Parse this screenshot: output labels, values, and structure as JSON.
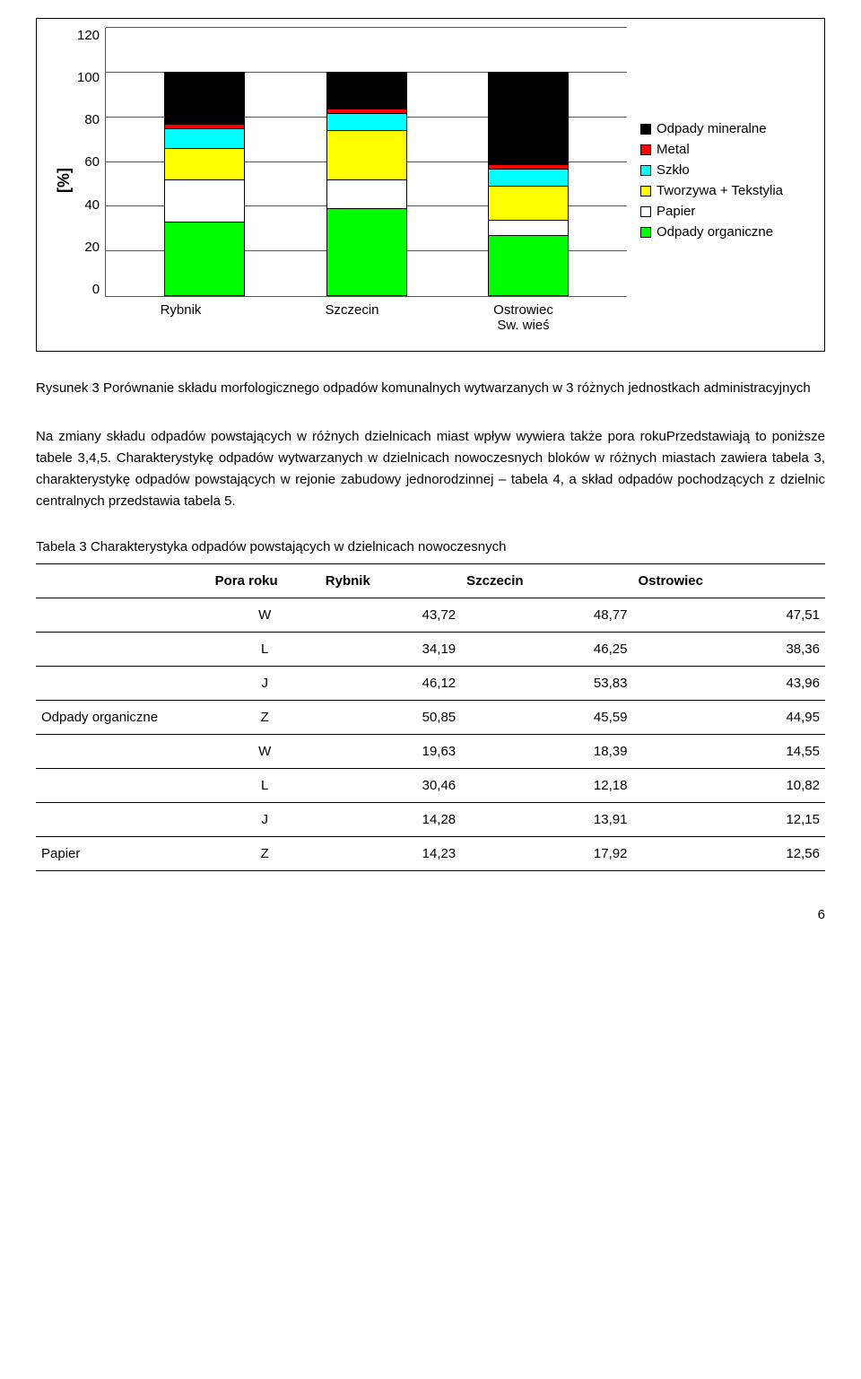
{
  "chart": {
    "type": "stacked-bar",
    "ylabel": "[%]",
    "ymax": 120,
    "ytick_step": 20,
    "yticks": [
      "120",
      "100",
      "80",
      "60",
      "40",
      "20",
      "0"
    ],
    "categories": [
      "Rybnik",
      "Szczecin",
      "Ostrowiec Sw. wieś"
    ],
    "series_order": [
      "organiczne",
      "papier",
      "tworzywa",
      "szklo",
      "metal",
      "mineralne"
    ],
    "legend": [
      {
        "key": "mineralne",
        "label": "Odpady mineralne",
        "color": "#000000"
      },
      {
        "key": "metal",
        "label": "Metal",
        "color": "#ff0000"
      },
      {
        "key": "szklo",
        "label": "Szkło",
        "color": "#00ffff"
      },
      {
        "key": "tworzywa",
        "label": "Tworzywa + Tekstylia",
        "color": "#ffff00"
      },
      {
        "key": "papier",
        "label": "Papier",
        "color": "#ffffff"
      },
      {
        "key": "organiczne",
        "label": "Odpady organiczne",
        "color": "#00ff00"
      }
    ],
    "data": {
      "Rybnik": {
        "organiczne": 33,
        "papier": 19,
        "tworzywa": 14,
        "szklo": 9,
        "metal": 2,
        "mineralne": 23
      },
      "Szczecin": {
        "organiczne": 39,
        "papier": 13,
        "tworzywa": 22,
        "szklo": 8,
        "metal": 2,
        "mineralne": 16
      },
      "Ostrowiec Sw. wieś": {
        "organiczne": 27,
        "papier": 7,
        "tworzywa": 15,
        "szklo": 8,
        "metal": 2,
        "mineralne": 41
      }
    },
    "gridline_color": "#555555",
    "background": "#ffffff",
    "bar_border": "#000000"
  },
  "caption": "Rysunek 3 Porównanie składu morfologicznego odpadów komunalnych wytwarzanych w 3 różnych jednostkach administracyjnych",
  "body_text": "Na zmiany składu odpadów powstających w różnych dzielnicach miast wpływ wywiera także pora rokuPrzedstawiają to poniższe tabele 3,4,5. Charakterystykę odpadów wytwarzanych w dzielnicach nowoczesnych bloków w różnych miastach zawiera tabela 3, charakterystykę odpadów powstających w rejonie zabudowy jednorodzinnej – tabela 4, a skład odpadów pochodzących z dzielnic centralnych przedstawia tabela 5.",
  "table": {
    "title": "Tabela 3 Charakterystyka odpadów powstających w dzielnicach nowoczesnych",
    "headers": [
      "",
      "Pora roku",
      "Rybnik",
      "Szczecin",
      "Ostrowiec"
    ],
    "groups": [
      {
        "label": "Odpady organiczne",
        "rows": [
          {
            "season": "W",
            "vals": [
              "43,72",
              "48,77",
              "47,51"
            ]
          },
          {
            "season": "L",
            "vals": [
              "34,19",
              "46,25",
              "38,36"
            ]
          },
          {
            "season": "J",
            "vals": [
              "46,12",
              "53,83",
              "43,96"
            ]
          },
          {
            "season": "Z",
            "vals": [
              "50,85",
              "45,59",
              "44,95"
            ]
          }
        ]
      },
      {
        "label": "Papier",
        "rows": [
          {
            "season": "W",
            "vals": [
              "19,63",
              "18,39",
              "14,55"
            ]
          },
          {
            "season": "L",
            "vals": [
              "30,46",
              "12,18",
              "10,82"
            ]
          },
          {
            "season": "J",
            "vals": [
              "14,28",
              "13,91",
              "12,15"
            ]
          },
          {
            "season": "Z",
            "vals": [
              "14,23",
              "17,92",
              "12,56"
            ]
          }
        ]
      }
    ]
  },
  "page_number": "6"
}
